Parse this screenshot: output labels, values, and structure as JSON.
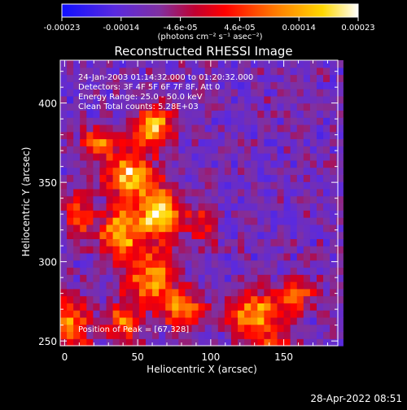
{
  "chart_data": {
    "type": "heatmap",
    "title": "Reconstructed RHESSI Image",
    "xlabel": "Heliocentric X (arcsec)",
    "ylabel": "Heliocentric Y (arcsec)",
    "xlim": [
      -3,
      187
    ],
    "ylim": [
      247,
      427
    ],
    "xticks": [
      0,
      50,
      100,
      150
    ],
    "yticks": [
      250,
      300,
      350,
      400
    ],
    "colorbar": {
      "ticks": [
        "-0.00023",
        "-0.00014",
        "-4.6e-05",
        "4.6e-05",
        "0.00014",
        "0.00023"
      ],
      "units_label": "(photons cm⁻² s⁻¹ asec⁻²)",
      "range": [
        -0.00023,
        0.00023
      ],
      "colors": [
        "#1010ff",
        "#7030c0",
        "#b00040",
        "#ff0000",
        "#ff8000",
        "#ffe000",
        "#ffffff"
      ]
    },
    "peak": [
      67,
      328
    ],
    "hotspots": [
      {
        "x": 25,
        "y": 375,
        "amp": 0.55,
        "sx": 9,
        "sy": 7
      },
      {
        "x": 45,
        "y": 355,
        "amp": 0.85,
        "sx": 11,
        "sy": 9
      },
      {
        "x": 60,
        "y": 385,
        "amp": 0.8,
        "sx": 9,
        "sy": 9
      },
      {
        "x": 65,
        "y": 330,
        "amp": 1.0,
        "sx": 9,
        "sy": 11
      },
      {
        "x": 38,
        "y": 318,
        "amp": 0.75,
        "sx": 10,
        "sy": 12
      },
      {
        "x": 10,
        "y": 330,
        "amp": 0.5,
        "sx": 7,
        "sy": 10
      },
      {
        "x": 5,
        "y": 260,
        "amp": 0.65,
        "sx": 8,
        "sy": 12
      },
      {
        "x": 60,
        "y": 290,
        "amp": 0.7,
        "sx": 12,
        "sy": 11
      },
      {
        "x": 40,
        "y": 262,
        "amp": 0.55,
        "sx": 9,
        "sy": 8
      },
      {
        "x": 80,
        "y": 270,
        "amp": 0.6,
        "sx": 10,
        "sy": 8
      },
      {
        "x": 95,
        "y": 325,
        "amp": 0.4,
        "sx": 7,
        "sy": 9
      },
      {
        "x": 130,
        "y": 268,
        "amp": 0.75,
        "sx": 13,
        "sy": 9
      },
      {
        "x": 160,
        "y": 280,
        "amp": 0.45,
        "sx": 9,
        "sy": 8
      },
      {
        "x": 140,
        "y": 250,
        "amp": 0.35,
        "sx": 12,
        "sy": 5
      }
    ]
  },
  "annotations": {
    "time": "24-Jan-2003 01:14:32.000 to 01:20:32.000",
    "detectors": "Detectors: 3F 4F 5F 6F 7F 8F, Att 0",
    "energy": "Energy Range: 25.0 - 50.0 keV",
    "clean": "Clean     Total counts: 5.28E+03",
    "peak": "Position of Peak = [67,328]"
  },
  "footer": {
    "date": "28-Apr-2022 08:51"
  }
}
